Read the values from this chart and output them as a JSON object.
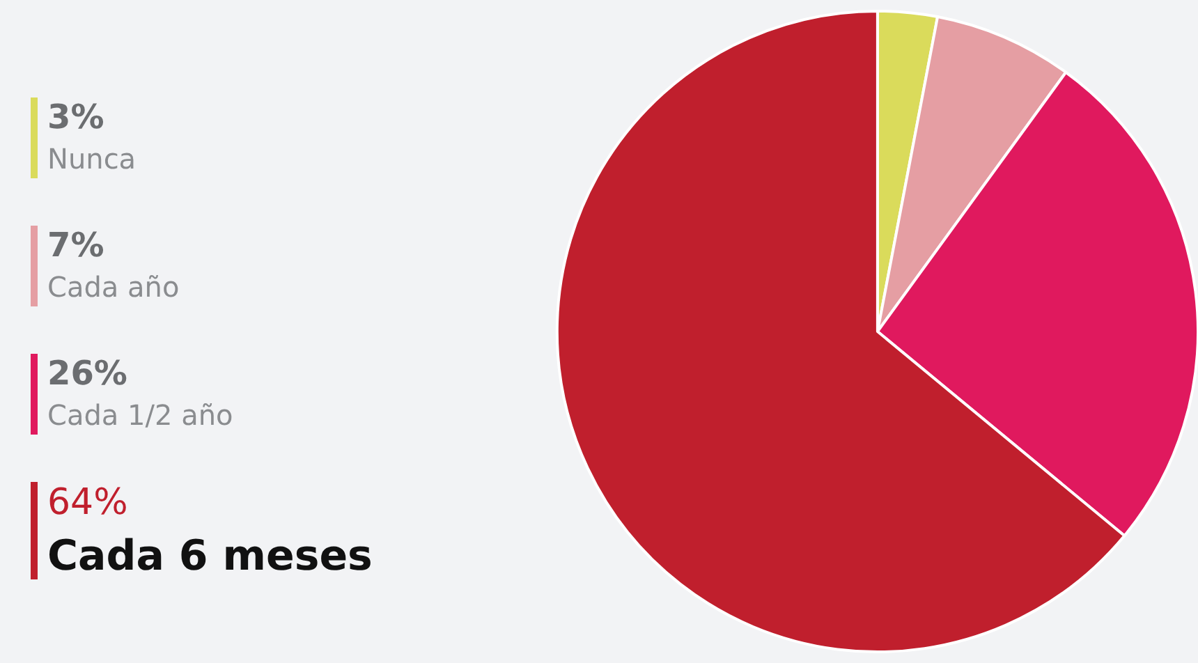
{
  "chart_data": {
    "type": "pie",
    "categories": [
      "Nunca",
      "Cada año",
      "Cada 1/2 año",
      "Cada 6 meses"
    ],
    "values": [
      3,
      7,
      26,
      64
    ],
    "value_labels": [
      "3%",
      "7%",
      "26%",
      "64%"
    ],
    "colors": [
      "#dadb5b",
      "#e59ea3",
      "#e0195e",
      "#c01f2d"
    ],
    "legend": "left"
  }
}
